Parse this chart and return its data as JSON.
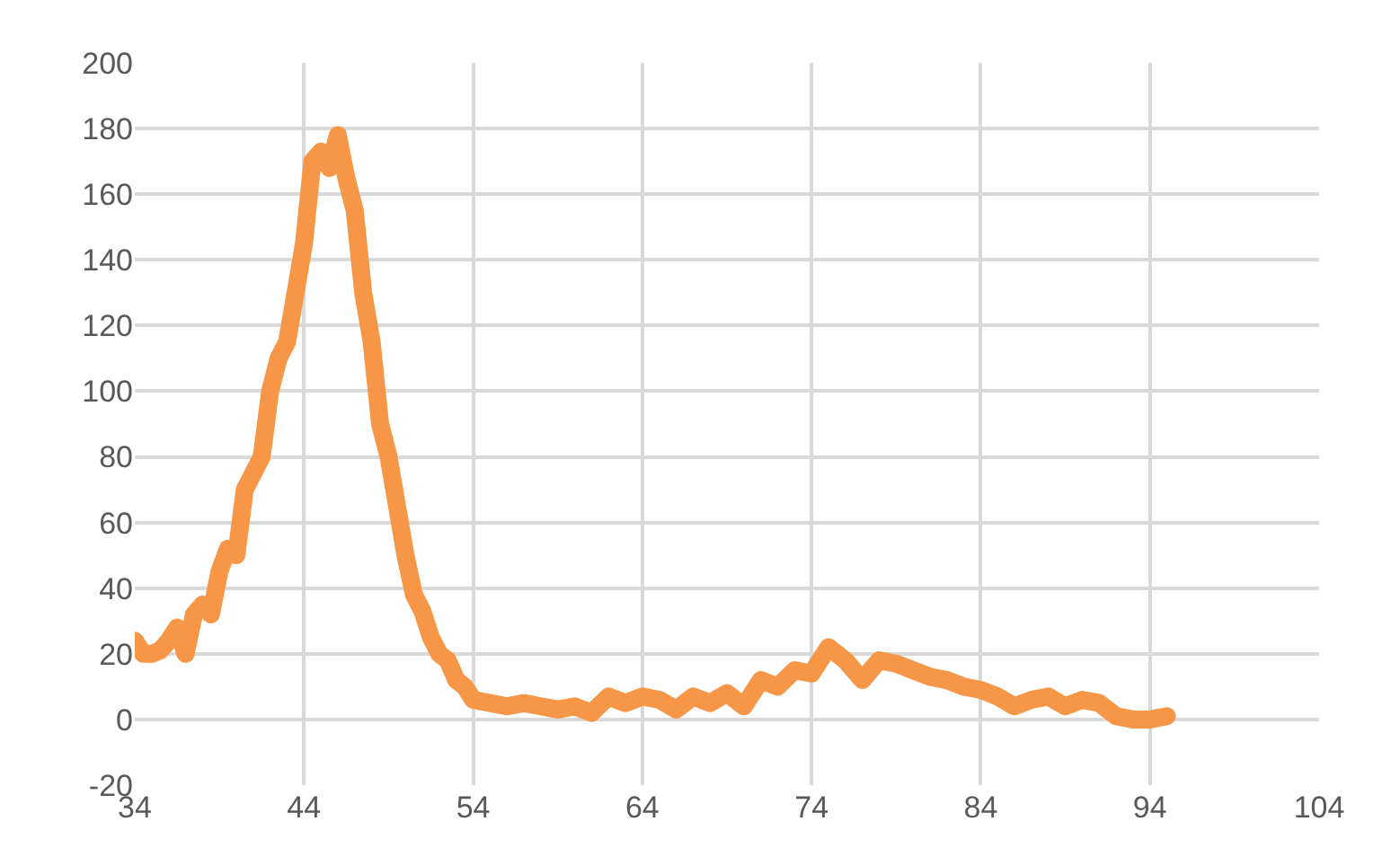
{
  "chart_data": {
    "type": "line",
    "x": [
      34,
      34.5,
      35,
      35.5,
      36,
      36.5,
      37,
      37.5,
      38,
      38.5,
      39,
      39.5,
      40,
      40.5,
      41,
      41.5,
      42,
      42.5,
      43,
      43.5,
      44,
      44.5,
      45,
      45.5,
      46,
      46.5,
      47,
      47.5,
      48,
      48.5,
      49,
      49.5,
      50,
      50.5,
      51,
      51.5,
      52,
      52.5,
      53,
      53.5,
      54,
      55,
      56,
      57,
      58,
      59,
      60,
      61,
      62,
      63,
      64,
      65,
      66,
      67,
      68,
      69,
      70,
      71,
      72,
      73,
      74,
      75,
      76,
      77,
      78,
      79,
      80,
      81,
      82,
      83,
      84,
      85,
      86,
      87,
      88,
      89,
      90,
      91,
      92,
      93,
      94,
      95
    ],
    "series": [
      {
        "color": "#f79646",
        "values": [
          24,
          20,
          20,
          21,
          24,
          28,
          20,
          32,
          35,
          32,
          45,
          52,
          50,
          70,
          75,
          80,
          100,
          110,
          115,
          130,
          145,
          170,
          173,
          168,
          178,
          165,
          155,
          130,
          115,
          90,
          80,
          65,
          50,
          38,
          33,
          25,
          20,
          18,
          12,
          10,
          6,
          5,
          4,
          5,
          4,
          3,
          4,
          2,
          7,
          5,
          7,
          6,
          3,
          7,
          5,
          8,
          4,
          12,
          10,
          15,
          14,
          22,
          18,
          12,
          18,
          17,
          15,
          13,
          12,
          10,
          9,
          7,
          4,
          6,
          7,
          4,
          6,
          5,
          1,
          0,
          0,
          1
        ]
      }
    ],
    "xlim": [
      34,
      104
    ],
    "xticks": [
      34,
      44,
      54,
      64,
      74,
      84,
      94,
      104
    ],
    "ylim": [
      -20,
      200
    ],
    "yticks": [
      -20,
      0,
      20,
      40,
      60,
      80,
      100,
      120,
      140,
      160,
      180,
      200
    ],
    "grid": true,
    "line_style": "solid",
    "legend": false
  }
}
